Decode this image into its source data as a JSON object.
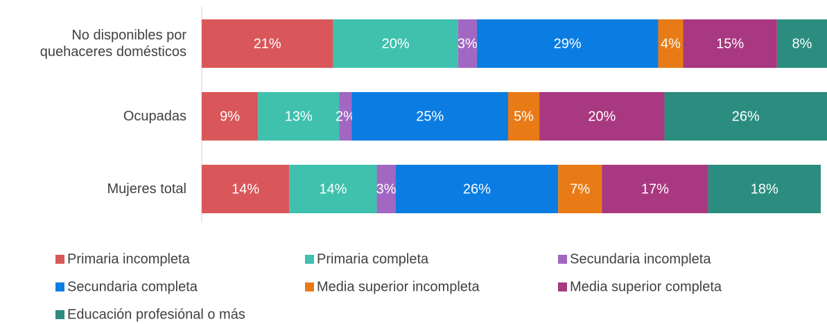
{
  "chart_data": {
    "type": "stacked-bar-horizontal",
    "categories": [
      "No disponibles por quehaceres domésticos",
      "Ocupadas",
      "Mujeres total"
    ],
    "xlim": [
      0,
      100
    ],
    "series": [
      {
        "name": "Primaria incompleta",
        "color": "#d9575a",
        "values": [
          21,
          9,
          14
        ],
        "value_labels": [
          "21%",
          "9%",
          "14%"
        ]
      },
      {
        "name": "Primaria completa",
        "color": "#3fc1ae",
        "values": [
          20,
          13,
          14
        ],
        "value_labels": [
          "20%",
          "13%",
          "14%"
        ]
      },
      {
        "name": "Secundaria incompleta",
        "color": "#a167c2",
        "values": [
          3,
          2,
          3
        ],
        "value_labels": [
          "3%",
          "2%",
          "3%"
        ]
      },
      {
        "name": "Secundaria completa",
        "color": "#0b7de2",
        "values": [
          29,
          25,
          26
        ],
        "value_labels": [
          "29%",
          "25%",
          "26%"
        ]
      },
      {
        "name": "Media superior incompleta",
        "color": "#e87b16",
        "values": [
          4,
          5,
          7
        ],
        "value_labels": [
          "4%",
          "5%",
          "7%"
        ]
      },
      {
        "name": "Media superior completa",
        "color": "#a8387f",
        "values": [
          15,
          20,
          17
        ],
        "value_labels": [
          "15%",
          "20%",
          "17%"
        ]
      },
      {
        "name": "Educación profesiónal o más",
        "color": "#2b8d7f",
        "values": [
          8,
          26,
          18
        ],
        "value_labels": [
          "8%",
          "26%",
          "18%"
        ]
      }
    ]
  }
}
